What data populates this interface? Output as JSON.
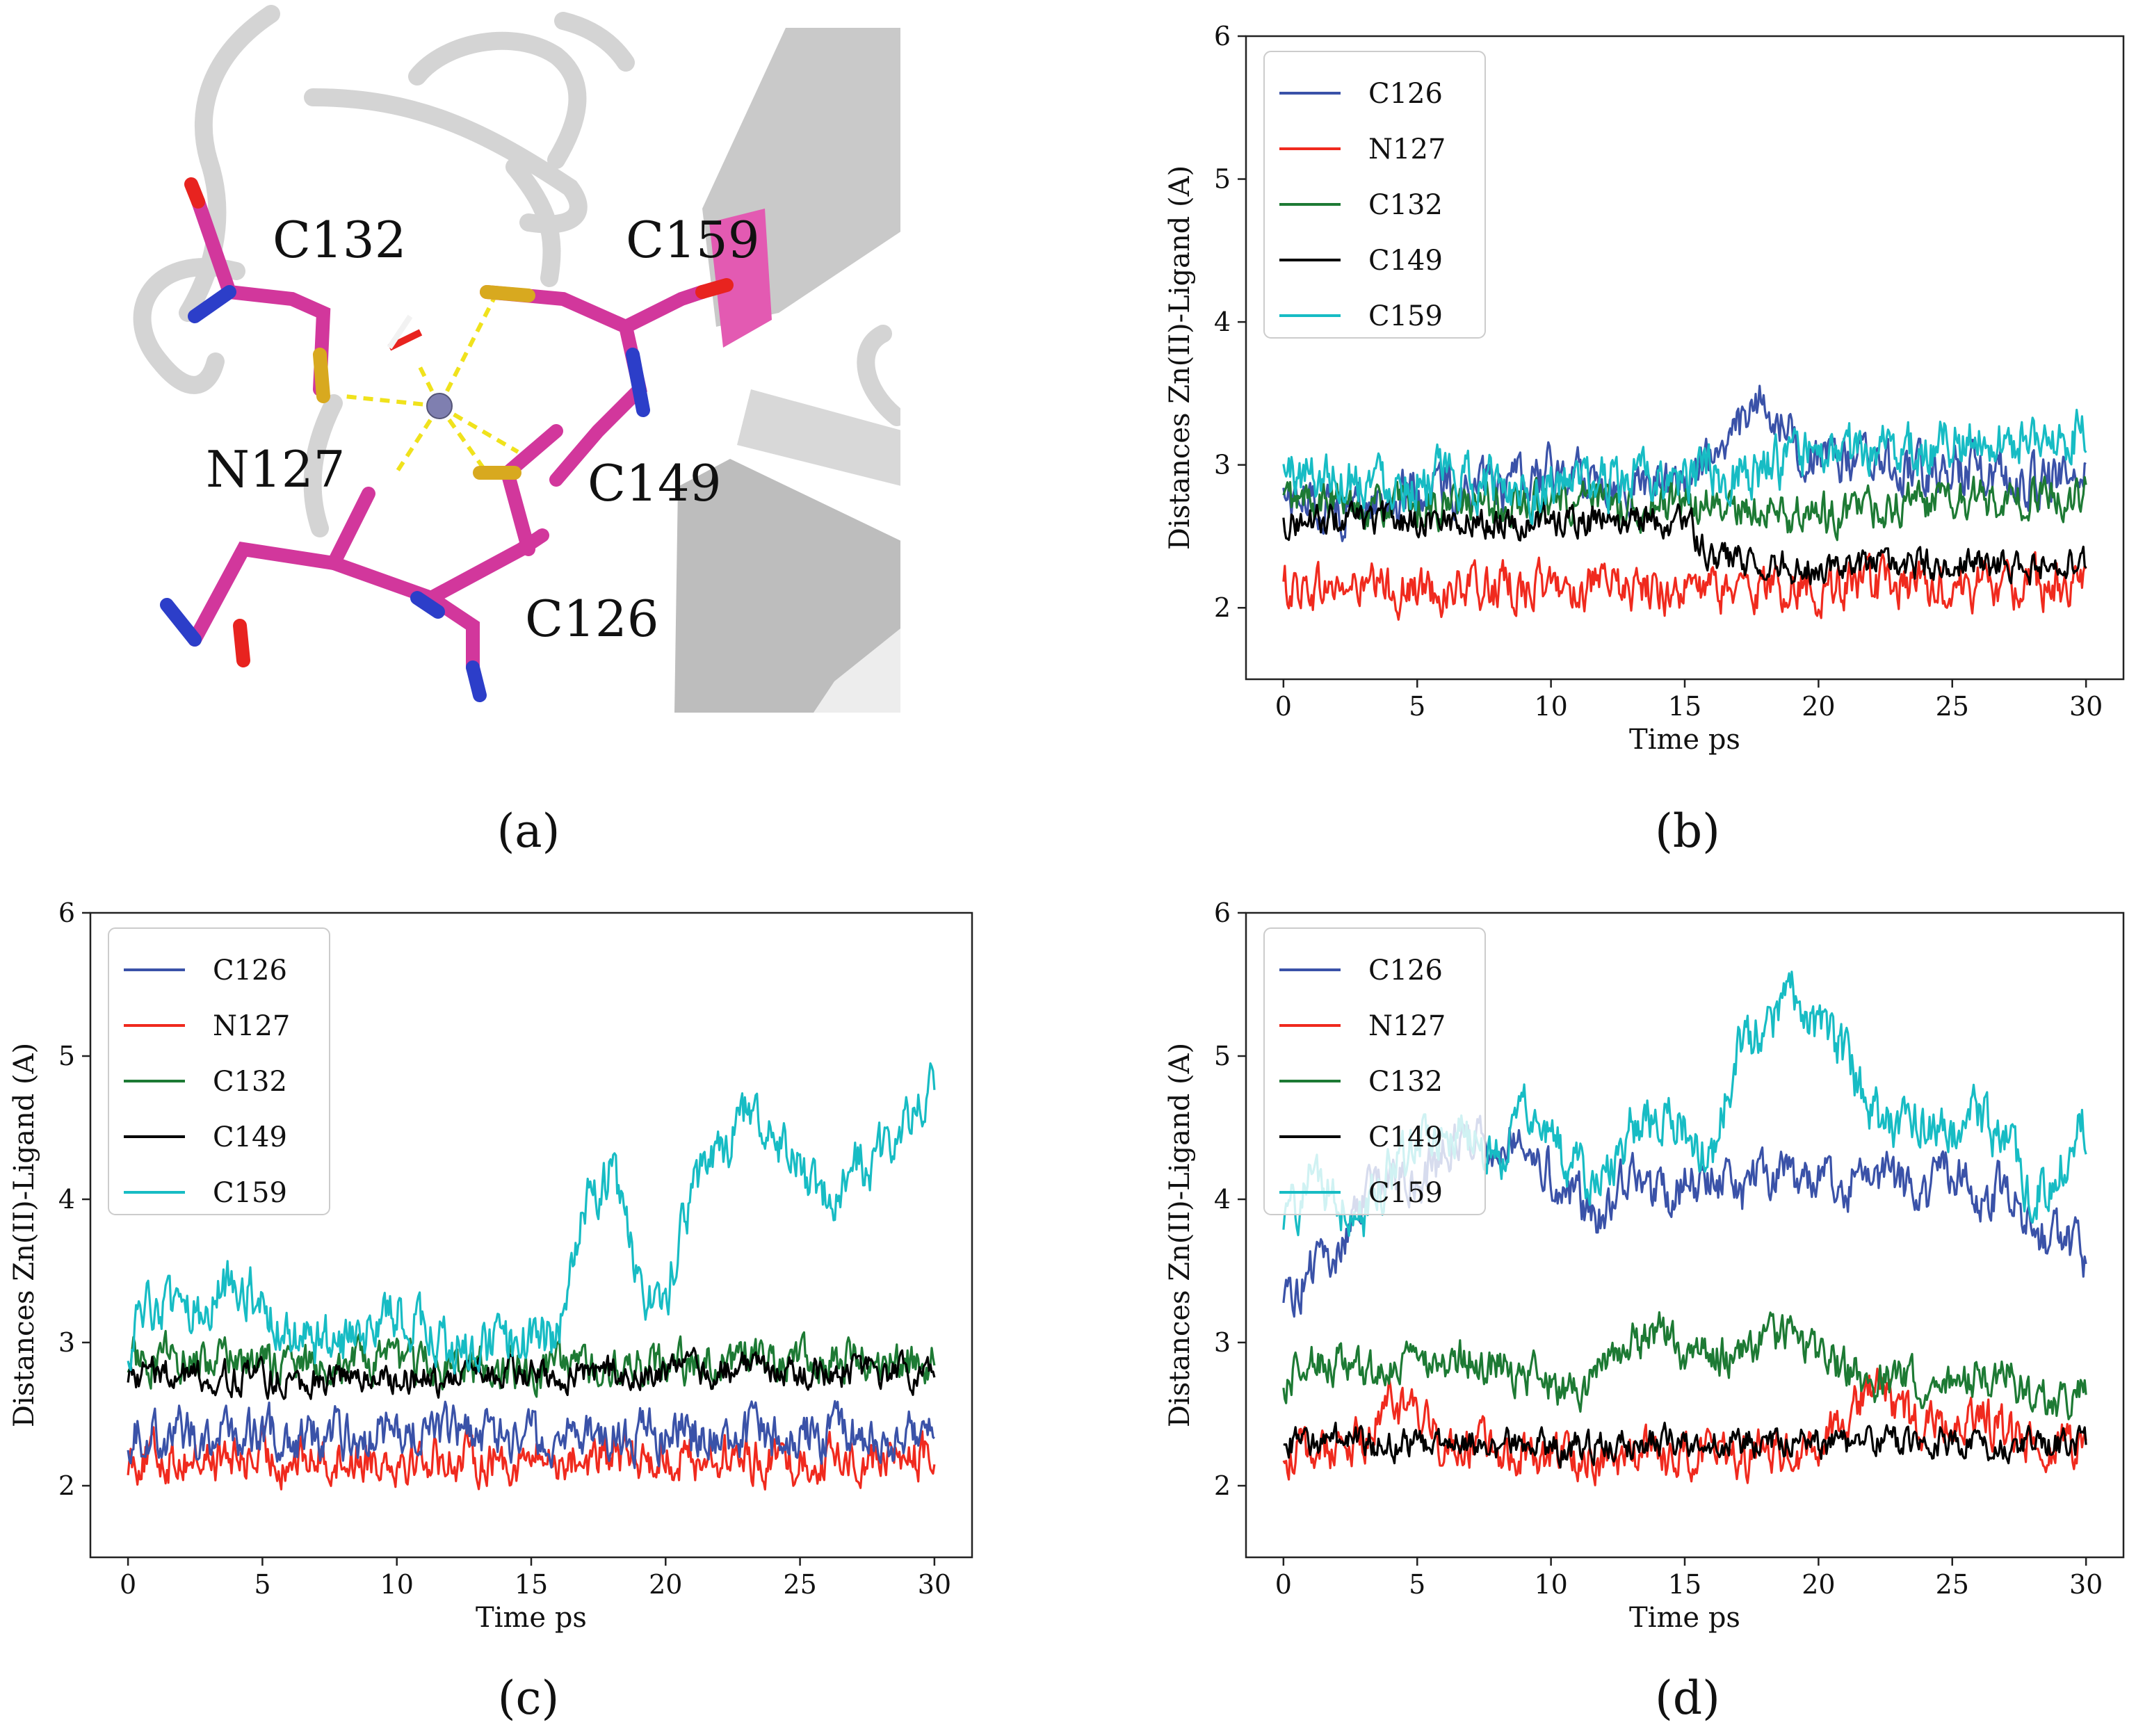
{
  "figure": {
    "panel_a": {
      "label": "(a)",
      "residue_labels": [
        "C132",
        "C159",
        "N127",
        "C149",
        "C126"
      ]
    }
  },
  "colors": {
    "C126": "#3a52a8",
    "N127": "#f02a1e",
    "C132": "#1d7a34",
    "C149": "#000000",
    "C159": "#17bcc4",
    "ribbon": "#d4d4d4",
    "carbon": "#d2379c",
    "sulfur": "#d8a91f",
    "nitrogen": "#2c3ec9",
    "oxygen": "#e8231f",
    "hydrogen": "#f2f2f2",
    "zinc": "#7f7fb0",
    "bond_dash": "#f0e21c"
  },
  "chart_data": [
    {
      "panel": "(b)",
      "type": "line",
      "xlabel": "Time ps",
      "ylabel": "Distances Zn(II)-Ligand (A)",
      "xlim": [
        -1.4,
        31.4
      ],
      "ylim": [
        1.5,
        6
      ],
      "xticks": [
        0,
        5,
        10,
        15,
        20,
        25,
        30
      ],
      "yticks": [
        2,
        3,
        4,
        5,
        6
      ],
      "legend": "upper-left",
      "series": [
        {
          "name": "C126",
          "x": [
            0,
            2,
            4,
            6,
            8,
            10,
            12,
            14,
            15,
            16,
            17,
            18,
            19,
            20,
            22,
            24,
            26,
            28,
            30
          ],
          "values": [
            2.8,
            2.7,
            2.75,
            2.85,
            2.8,
            2.95,
            2.9,
            2.85,
            2.9,
            3.05,
            3.25,
            3.45,
            3.2,
            3.0,
            3.05,
            2.95,
            3.0,
            2.9,
            2.95
          ]
        },
        {
          "name": "N127",
          "x": [
            0,
            5,
            10,
            15,
            20,
            25,
            30
          ],
          "values": [
            2.15,
            2.12,
            2.15,
            2.12,
            2.15,
            2.15,
            2.15
          ]
        },
        {
          "name": "C132",
          "x": [
            0,
            5,
            10,
            15,
            16,
            20,
            25,
            30
          ],
          "values": [
            2.75,
            2.7,
            2.72,
            2.72,
            2.7,
            2.65,
            2.75,
            2.8
          ]
        },
        {
          "name": "C149",
          "x": [
            0,
            5,
            10,
            15,
            16,
            18,
            20,
            25,
            30
          ],
          "values": [
            2.6,
            2.62,
            2.6,
            2.62,
            2.35,
            2.3,
            2.28,
            2.3,
            2.3
          ]
        },
        {
          "name": "C159",
          "x": [
            0,
            5,
            10,
            15,
            20,
            25,
            30
          ],
          "values": [
            2.95,
            2.9,
            2.85,
            2.9,
            3.05,
            3.15,
            3.2
          ]
        }
      ]
    },
    {
      "panel": "(c)",
      "type": "line",
      "xlabel": "Time ps",
      "ylabel": "Distances Zn(II)-Ligand (A)",
      "xlim": [
        -1.4,
        31.4
      ],
      "ylim": [
        1.5,
        6
      ],
      "xticks": [
        0,
        5,
        10,
        15,
        20,
        25,
        30
      ],
      "yticks": [
        2,
        3,
        4,
        5,
        6
      ],
      "legend": "upper-left",
      "series": [
        {
          "name": "C126",
          "x": [
            0,
            5,
            10,
            15,
            20,
            25,
            30
          ],
          "values": [
            2.38,
            2.35,
            2.36,
            2.35,
            2.35,
            2.35,
            2.35
          ]
        },
        {
          "name": "N127",
          "x": [
            0,
            5,
            10,
            15,
            20,
            25,
            30
          ],
          "values": [
            2.2,
            2.18,
            2.2,
            2.18,
            2.2,
            2.18,
            2.2
          ]
        },
        {
          "name": "C132",
          "x": [
            0,
            5,
            10,
            15,
            20,
            25,
            30
          ],
          "values": [
            2.9,
            2.85,
            2.85,
            2.8,
            2.85,
            2.9,
            2.85
          ]
        },
        {
          "name": "C149",
          "x": [
            0,
            5,
            10,
            15,
            20,
            25,
            30
          ],
          "values": [
            2.8,
            2.75,
            2.75,
            2.78,
            2.8,
            2.8,
            2.8
          ]
        },
        {
          "name": "C159",
          "x": [
            0,
            1,
            2,
            4,
            6,
            8,
            10,
            12,
            14,
            16,
            17,
            18,
            19,
            20,
            21,
            22,
            23,
            24,
            25,
            26,
            27,
            28,
            29,
            30
          ],
          "values": [
            3.0,
            3.3,
            3.1,
            3.5,
            3.0,
            3.0,
            3.2,
            2.95,
            3.0,
            3.05,
            4.0,
            4.2,
            3.4,
            3.3,
            4.1,
            4.3,
            4.6,
            4.5,
            4.2,
            4.0,
            4.2,
            4.3,
            4.5,
            4.8
          ]
        }
      ]
    },
    {
      "panel": "(d)",
      "type": "line",
      "xlabel": "Time ps",
      "ylabel": "Distances Zn(II)-Ligand (A)",
      "xlim": [
        -1.4,
        31.4
      ],
      "ylim": [
        1.5,
        6
      ],
      "xticks": [
        0,
        5,
        10,
        15,
        20,
        25,
        30
      ],
      "yticks": [
        2,
        3,
        4,
        5,
        6
      ],
      "legend": "upper-left",
      "series": [
        {
          "name": "C126",
          "x": [
            0,
            1,
            2,
            3,
            4,
            5,
            6,
            7,
            8,
            9,
            10,
            11,
            12,
            13,
            14,
            15,
            16,
            17,
            18,
            19,
            20,
            21,
            22,
            23,
            24,
            25,
            26,
            27,
            28,
            29,
            30
          ],
          "values": [
            3.3,
            3.5,
            3.6,
            4.0,
            4.2,
            4.1,
            4.3,
            4.5,
            4.4,
            4.5,
            4.2,
            4.0,
            3.9,
            4.3,
            4.0,
            4.1,
            4.2,
            4.0,
            4.2,
            4.1,
            4.2,
            4.1,
            4.2,
            4.1,
            4.0,
            4.2,
            4.0,
            4.1,
            3.8,
            3.7,
            3.6
          ]
        },
        {
          "name": "N127",
          "x": [
            0,
            3,
            4,
            6,
            10,
            15,
            20,
            22,
            23,
            24,
            26,
            28,
            30
          ],
          "values": [
            2.2,
            2.3,
            2.6,
            2.3,
            2.2,
            2.2,
            2.25,
            2.7,
            2.5,
            2.4,
            2.45,
            2.3,
            2.3
          ]
        },
        {
          "name": "C132",
          "x": [
            0,
            1,
            2,
            3,
            5,
            7,
            9,
            11,
            13,
            14,
            15,
            16,
            17,
            19,
            21,
            23,
            25,
            27,
            28,
            30
          ],
          "values": [
            2.7,
            2.9,
            2.85,
            2.75,
            2.85,
            2.9,
            2.8,
            2.65,
            3.0,
            3.1,
            2.9,
            2.9,
            2.95,
            3.05,
            2.8,
            2.7,
            2.75,
            2.8,
            2.6,
            2.65
          ]
        },
        {
          "name": "C149",
          "x": [
            0,
            5,
            10,
            15,
            20,
            25,
            30
          ],
          "values": [
            2.3,
            2.3,
            2.28,
            2.3,
            2.3,
            2.3,
            2.28
          ]
        },
        {
          "name": "C159",
          "x": [
            0,
            1,
            2,
            3,
            4,
            5,
            6,
            7,
            8,
            9,
            10,
            11,
            12,
            13,
            14,
            15,
            16,
            17,
            18,
            19,
            20,
            21,
            22,
            23,
            24,
            25,
            26,
            27,
            28,
            29,
            30
          ],
          "values": [
            3.8,
            4.1,
            4.0,
            3.9,
            4.2,
            4.4,
            4.5,
            4.4,
            4.3,
            4.6,
            4.4,
            4.2,
            4.1,
            4.5,
            4.6,
            4.5,
            4.3,
            5.0,
            5.2,
            5.4,
            5.2,
            5.0,
            4.6,
            4.5,
            4.5,
            4.4,
            4.6,
            4.4,
            4.0,
            4.2,
            4.55
          ]
        }
      ]
    }
  ]
}
